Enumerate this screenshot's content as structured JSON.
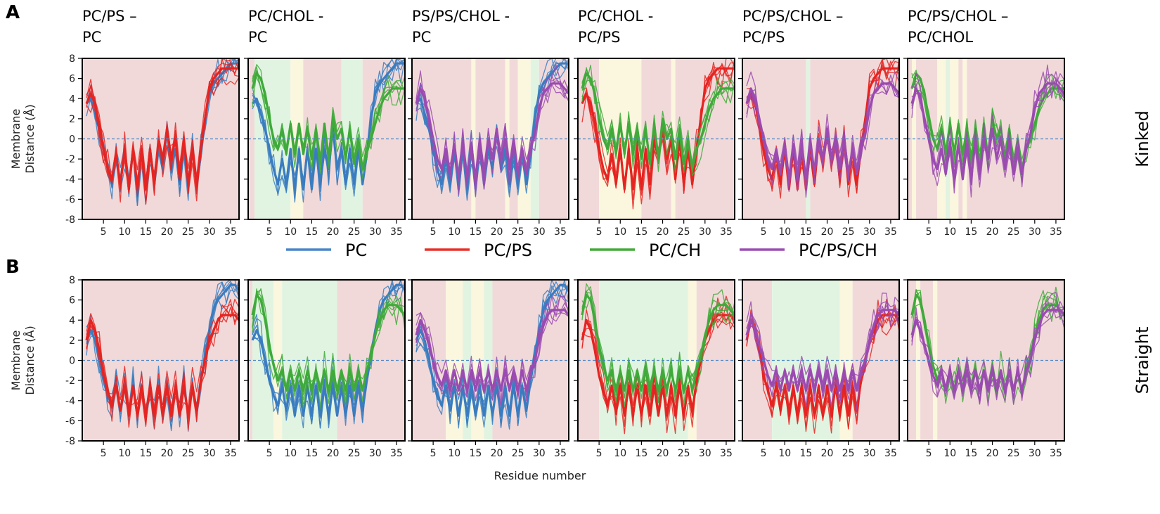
{
  "chart_data": {
    "type": "line",
    "panel_letters": [
      "A",
      "B"
    ],
    "row_labels": [
      "Kinked",
      "Straight"
    ],
    "ylabel_lines": [
      "Membrane",
      "Distance (Å)"
    ],
    "xlabel": "Residue number",
    "xlim": [
      0,
      37
    ],
    "ylim": [
      -8,
      8
    ],
    "xticks": [
      5,
      10,
      15,
      20,
      25,
      30,
      35
    ],
    "yticks": [
      -8,
      -6,
      -4,
      -2,
      0,
      2,
      4,
      6,
      8
    ],
    "reference_line": 0,
    "legend": [
      {
        "name": "PC",
        "color": "#4a86c8"
      },
      {
        "name": "PC/PS",
        "color": "#e8322c"
      },
      {
        "name": "PC/CH",
        "color": "#43ab3a"
      },
      {
        "name": "PC/PS/CH",
        "color": "#9b4fb3"
      }
    ],
    "colors": {
      "PC": "#3a7cc0",
      "PCPS": "#e52421",
      "PCCH": "#3faa3a",
      "PCPSCH": "#9a4ab0",
      "band_red": "#f1d9d9",
      "band_green": "#e1f4e1",
      "band_yellow": "#fbf6de",
      "zero_line": "#4a86c8",
      "frame": "#000000"
    },
    "panels": [
      {
        "title": [
          "PC/PS –",
          "PC"
        ],
        "series": [
          "PC",
          "PCPS"
        ]
      },
      {
        "title": [
          "PC/CHOL -",
          "PC"
        ],
        "series": [
          "PC",
          "PCCH"
        ]
      },
      {
        "title": [
          "PS/PS/CHOL -",
          "PC"
        ],
        "series": [
          "PC",
          "PCPSCH"
        ]
      },
      {
        "title": [
          "PC/CHOL -",
          "PC/PS"
        ],
        "series": [
          "PCPS",
          "PCCH"
        ]
      },
      {
        "title": [
          "PC/PS/CHOL –",
          "PC/PS"
        ],
        "series": [
          "PCPS",
          "PCPSCH"
        ]
      },
      {
        "title": [
          "PC/PS/CHOL –",
          "PC/CHOL"
        ],
        "series": [
          "PCCH",
          "PCPSCH"
        ]
      }
    ],
    "bands": {
      "kinked": [
        [
          [
            0,
            37,
            "red"
          ]
        ],
        [
          [
            0,
            1.5,
            "red"
          ],
          [
            1.5,
            10,
            "green"
          ],
          [
            10,
            13,
            "yellow"
          ],
          [
            13,
            22,
            "red"
          ],
          [
            22,
            27,
            "green"
          ],
          [
            27,
            37,
            "red"
          ]
        ],
        [
          [
            0,
            14,
            "red"
          ],
          [
            14,
            15,
            "yellow"
          ],
          [
            15,
            22,
            "red"
          ],
          [
            22,
            23,
            "yellow"
          ],
          [
            23,
            25,
            "red"
          ],
          [
            25,
            28,
            "yellow"
          ],
          [
            28,
            30,
            "green"
          ],
          [
            30,
            37,
            "red"
          ]
        ],
        [
          [
            0,
            5,
            "red"
          ],
          [
            5,
            15,
            "yellow"
          ],
          [
            15,
            22,
            "red"
          ],
          [
            22,
            23,
            "yellow"
          ],
          [
            23,
            37,
            "red"
          ]
        ],
        [
          [
            0,
            15,
            "red"
          ],
          [
            15,
            16,
            "green"
          ],
          [
            16,
            37,
            "red"
          ]
        ],
        [
          [
            0,
            1,
            "red"
          ],
          [
            1,
            2,
            "yellow"
          ],
          [
            2,
            7,
            "red"
          ],
          [
            7,
            9,
            "yellow"
          ],
          [
            9,
            10,
            "green"
          ],
          [
            10,
            12,
            "yellow"
          ],
          [
            12,
            13,
            "red"
          ],
          [
            13,
            14,
            "yellow"
          ],
          [
            14,
            37,
            "red"
          ]
        ]
      ],
      "straight": [
        [
          [
            0,
            37,
            "red"
          ]
        ],
        [
          [
            0,
            1,
            "red"
          ],
          [
            1,
            6,
            "green"
          ],
          [
            6,
            8,
            "yellow"
          ],
          [
            8,
            21,
            "green"
          ],
          [
            21,
            37,
            "red"
          ]
        ],
        [
          [
            0,
            8,
            "red"
          ],
          [
            8,
            12,
            "yellow"
          ],
          [
            12,
            14,
            "green"
          ],
          [
            14,
            17,
            "yellow"
          ],
          [
            17,
            19,
            "green"
          ],
          [
            19,
            37,
            "red"
          ]
        ],
        [
          [
            0,
            5,
            "red"
          ],
          [
            5,
            26,
            "green"
          ],
          [
            26,
            28,
            "yellow"
          ],
          [
            28,
            37,
            "red"
          ]
        ],
        [
          [
            0,
            7,
            "red"
          ],
          [
            7,
            23,
            "green"
          ],
          [
            23,
            26,
            "yellow"
          ],
          [
            26,
            37,
            "red"
          ]
        ],
        [
          [
            0,
            2,
            "red"
          ],
          [
            2,
            3,
            "yellow"
          ],
          [
            3,
            6,
            "red"
          ],
          [
            6,
            7,
            "yellow"
          ],
          [
            7,
            37,
            "red"
          ]
        ]
      ]
    },
    "profiles": {
      "kinked": {
        "PC": [
          3.5,
          4,
          2.5,
          1,
          -1,
          -3,
          -4.5,
          -2,
          -4.5,
          -1,
          -5,
          -1,
          -5,
          -1,
          -5,
          -1,
          -4.5,
          -1,
          -3,
          1,
          -3,
          -1,
          -4.5,
          -1,
          -4.5,
          -1,
          -4.5,
          -1.5,
          2,
          4.5,
          5.5,
          6,
          6.5,
          7,
          7.5,
          7.5,
          7.5
        ],
        "PCPS": [
          3.5,
          4.5,
          3.5,
          1.5,
          -1,
          -3,
          -4,
          -1.5,
          -4.5,
          -1,
          -5,
          -1,
          -5,
          -1,
          -5,
          -1,
          -4.5,
          0,
          -2,
          1,
          -2,
          0,
          -4,
          0,
          -4.5,
          -1,
          -4.5,
          -1,
          2,
          5,
          6,
          6.5,
          7,
          7,
          7,
          7,
          7
        ],
        "PCCH": [
          5,
          6.5,
          6,
          4.5,
          2,
          0,
          -1,
          1,
          -1.5,
          1.5,
          -1.5,
          1.5,
          -1.5,
          1,
          -2,
          1,
          -2.5,
          1.5,
          -2,
          2,
          0,
          1,
          -2,
          1,
          -2.5,
          0,
          -3,
          -1,
          0,
          1.5,
          3,
          4,
          4.5,
          5,
          5,
          5,
          5
        ],
        "PCPSCH": [
          3.5,
          5,
          4,
          2,
          0,
          -2,
          -3,
          -1,
          -3.5,
          -0.5,
          -4,
          -0.5,
          -4,
          -0.5,
          -4,
          0,
          -3.5,
          0,
          -2,
          1,
          -2,
          0,
          -3,
          0,
          -3.5,
          -1,
          -3.5,
          -1,
          0.5,
          3,
          4.5,
          5,
          5.5,
          5.5,
          5.5,
          5,
          4.5
        ]
      },
      "straight": {
        "PC": [
          2,
          3,
          2,
          0,
          -2,
          -3.5,
          -4.5,
          -2.5,
          -5,
          -2.5,
          -5.5,
          -2.5,
          -5.5,
          -2.5,
          -5.5,
          -2.5,
          -5.5,
          -2.5,
          -5.5,
          -2.5,
          -5.5,
          -2.5,
          -5.5,
          -2.5,
          -5.5,
          -2.5,
          -5,
          -2,
          0.5,
          3,
          5,
          6,
          6.5,
          7,
          7.5,
          7.5,
          7
        ],
        "PCPS": [
          2,
          4,
          3,
          1,
          -1.5,
          -3,
          -4.5,
          -2.5,
          -5,
          -2.5,
          -5.5,
          -2.5,
          -5.5,
          -2.5,
          -5.5,
          -2.5,
          -5.5,
          -2.5,
          -5.5,
          -2.5,
          -5.5,
          -2.5,
          -5.5,
          -2.5,
          -5.5,
          -2.5,
          -5,
          -2,
          0,
          2,
          3,
          4,
          4.5,
          4.5,
          4.5,
          4.5,
          4
        ],
        "PCCH": [
          4.5,
          6.5,
          6,
          4,
          1.5,
          -0.5,
          -2,
          -1,
          -3,
          -1,
          -3,
          -1,
          -3,
          -1,
          -3,
          -1,
          -3,
          -1,
          -3,
          -1,
          -3,
          -1,
          -3,
          -1,
          -3,
          -1,
          -3,
          -1,
          0.5,
          2.5,
          4,
          5,
          5.5,
          5.5,
          5.5,
          5,
          4.5
        ],
        "PCPSCH": [
          2.5,
          4,
          3,
          1.5,
          0,
          -1.5,
          -2.5,
          -1,
          -3,
          -1,
          -3,
          -1,
          -3,
          -1,
          -3,
          -1,
          -3,
          -1,
          -3,
          -1,
          -3,
          -1,
          -3,
          -1,
          -3,
          -1,
          -3,
          -1,
          0,
          2,
          3.5,
          4.5,
          5,
          5,
          5,
          5,
          4.5
        ]
      }
    }
  }
}
